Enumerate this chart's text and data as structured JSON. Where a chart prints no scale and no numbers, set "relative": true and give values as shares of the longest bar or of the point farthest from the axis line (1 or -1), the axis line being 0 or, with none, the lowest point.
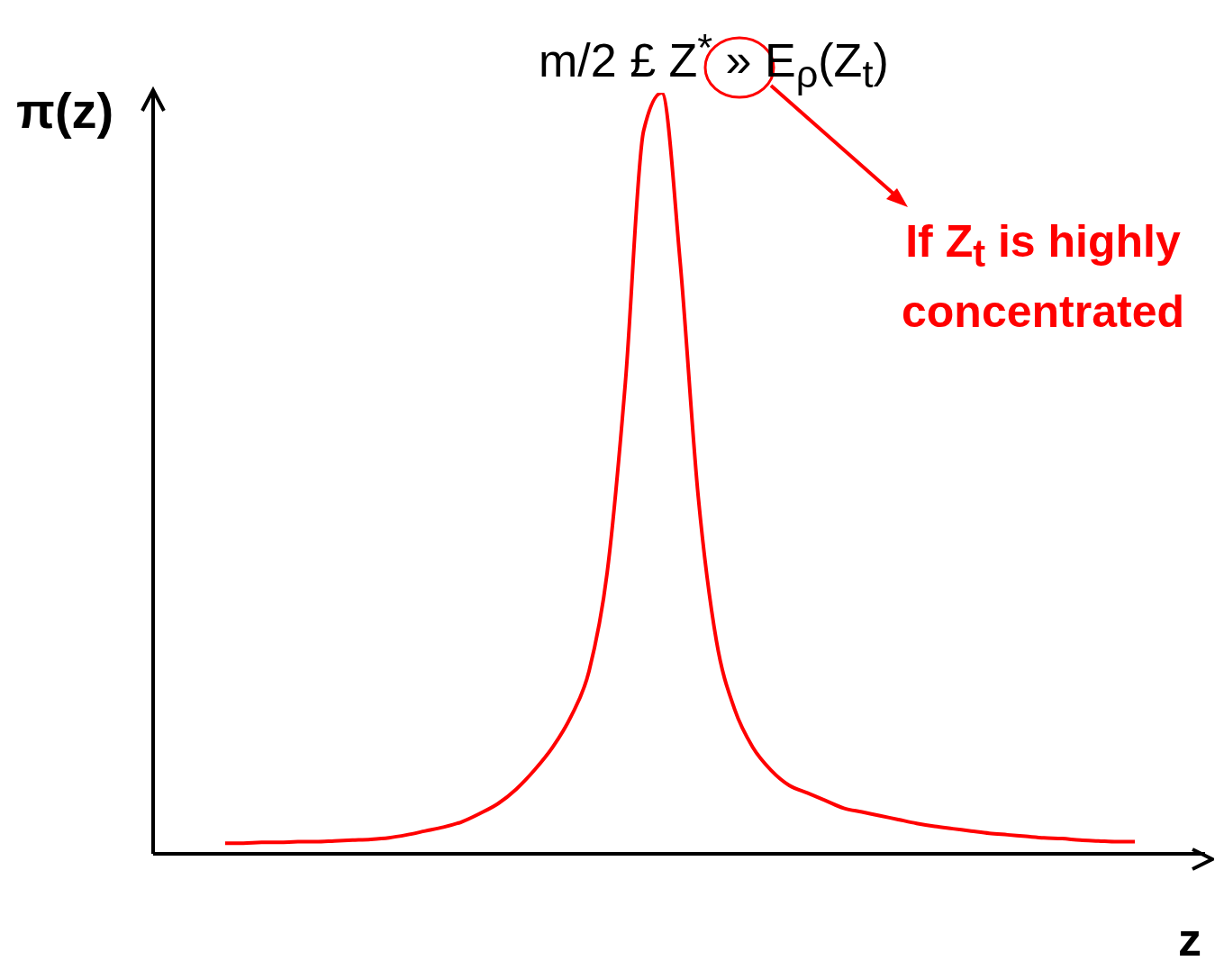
{
  "chart_data": {
    "type": "line",
    "title": "m/2 £ Z$^{*}$ » E$_{ρ}$(Z$_{t}$)",
    "xlabel": "z",
    "ylabel": "π(z)",
    "relative": true,
    "marker": "none",
    "grid": false,
    "legend": false,
    "annotations": [
      "If Z$_{t}$ is highly concentrated"
    ],
    "categories": [
      null,
      null,
      null,
      null,
      null,
      null,
      null,
      null,
      null,
      null,
      null,
      null,
      null,
      null,
      null,
      null,
      null,
      null,
      null,
      null,
      null,
      null,
      null,
      null,
      null,
      null,
      null,
      null,
      null,
      null,
      null,
      null,
      null,
      null,
      null,
      null,
      null,
      null,
      null,
      null,
      null,
      null,
      null,
      null,
      null,
      null,
      null,
      null,
      null,
      null,
      null
    ],
    "series": [
      {
        "color": "#ff0000",
        "values": [
          0.014,
          0.014,
          0.015,
          0.015,
          0.016,
          0.016,
          0.017,
          0.018,
          0.019,
          0.021,
          0.025,
          0.03,
          0.035,
          0.042,
          0.053,
          0.066,
          0.085,
          0.11,
          0.14,
          0.18,
          0.24,
          0.37,
          0.62,
          0.95,
          1,
          0.78,
          0.47,
          0.28,
          0.19,
          0.14,
          0.11,
          0.09,
          0.08,
          0.07,
          0.06,
          0.055,
          0.05,
          0.045,
          0.04,
          0.036,
          0.033,
          0.03,
          0.027,
          0.025,
          0.023,
          0.021,
          0.02,
          0.018,
          0.017,
          0.016,
          0.016
        ]
      }
    ]
  }
}
